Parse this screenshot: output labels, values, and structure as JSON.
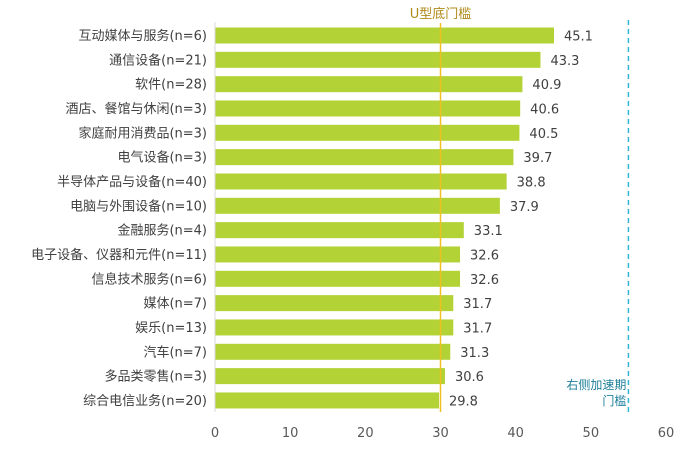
{
  "chart_data": {
    "type": "bar",
    "orientation": "horizontal",
    "categories": [
      "互动媒体与服务(n=6)",
      "通信设备(n=21)",
      "软件(n=28)",
      "酒店、餐馆与休闲(n=3)",
      "家庭耐用消费品(n=3)",
      "电气设备(n=3)",
      "半导体产品与设备(n=40)",
      "电脑与外围设备(n=10)",
      "金融服务(n=4)",
      "电子设备、仪器和元件(n=11)",
      "信息技术服务(n=6)",
      "媒体(n=7)",
      "娱乐(n=13)",
      "汽车(n=7)",
      "多品类零售(n=3)",
      "综合电信业务(n=20)"
    ],
    "values": [
      45.1,
      43.3,
      40.9,
      40.6,
      40.5,
      39.7,
      38.8,
      37.9,
      33.1,
      32.6,
      32.6,
      31.7,
      31.7,
      31.3,
      30.6,
      29.8
    ],
    "value_labels": [
      "45.1",
      "43.3",
      "40.9",
      "40.6",
      "40.5",
      "39.7",
      "38.8",
      "37.9",
      "33.1",
      "32.6",
      "32.6",
      "31.7",
      "31.7",
      "31.3",
      "30.6",
      "29.8"
    ],
    "xlim": [
      0,
      60
    ],
    "xticks": [
      0,
      10,
      20,
      30,
      40,
      50,
      60
    ],
    "xtick_labels": [
      "0",
      "10",
      "20",
      "30",
      "40",
      "50",
      "60"
    ],
    "grid": false,
    "bar_color": "#b2d235",
    "reference_lines": [
      {
        "value": 30,
        "style": "solid",
        "color": "#f0c020",
        "label_lines": [
          "U型底门槛"
        ]
      },
      {
        "value": 55,
        "style": "dashed",
        "color": "#33b5d6",
        "label_lines": [
          "右侧加速期",
          "门槛"
        ]
      }
    ]
  }
}
